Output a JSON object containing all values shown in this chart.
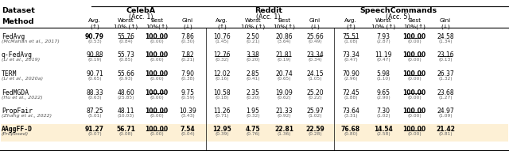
{
  "datasets": [
    "CelebA",
    "Reddit",
    "SpeechCommands"
  ],
  "dataset_subtitles": [
    "(Acc. 1)",
    "(Acc. 1)",
    "(Acc. 5)"
  ],
  "methods": [
    {
      "name": "FedAvg",
      "cite": "(McMahan et al., 2017)"
    },
    {
      "name": "q-FedAvg",
      "cite": "(Li et al., 2019)"
    },
    {
      "name": "TERM",
      "cite": "(Li et al., 2020a)"
    },
    {
      "name": "FedMGDA",
      "cite": "(Hu et al., 2022)"
    },
    {
      "name": "PropFair",
      "cite": "(Zhang et al., 2022)"
    },
    {
      "name": "AAggFF-D",
      "cite": "(Proposed)"
    }
  ],
  "data": {
    "CelebA": {
      "FedAvg": [
        [
          "90.79",
          "55.76",
          "100.00",
          "7.86"
        ],
        [
          "(0.53)",
          "(0.84)",
          "(0.00)",
          "(0.30)"
        ]
      ],
      "q-FedAvg": [
        [
          "90.88",
          "55.73",
          "100.00",
          "7.82"
        ],
        [
          "(0.19)",
          "(0.85)",
          "(0.00)",
          "(0.21)"
        ]
      ],
      "TERM": [
        [
          "90.71",
          "55.66",
          "100.00",
          "7.90"
        ],
        [
          "(0.65)",
          "(0.93)",
          "(0.00)",
          "(0.38)"
        ]
      ],
      "FedMGDA": [
        [
          "88.33",
          "48.60",
          "100.00",
          "9.75"
        ],
        [
          "(0.63)",
          "(25.85)",
          "(0.00)",
          "(0.59)"
        ]
      ],
      "PropFair": [
        [
          "87.25",
          "48.11",
          "100.00",
          "10.39"
        ],
        [
          "(5.01)",
          "(10.03)",
          "(0.00)",
          "(3.43)"
        ]
      ],
      "AAggFF-D": [
        [
          "91.27",
          "56.71",
          "100.00",
          "7.54"
        ],
        [
          "(0.07)",
          "(0.08)",
          "(0.00)",
          "(0.04)"
        ]
      ]
    },
    "Reddit": {
      "FedAvg": [
        [
          "10.76",
          "2.50",
          "20.86",
          "25.66"
        ],
        [
          "(1.45)",
          "(0.21)",
          "(3.64)",
          "(0.49)"
        ]
      ],
      "q-FedAvg": [
        [
          "12.76",
          "3.38",
          "21.81",
          "23.34"
        ],
        [
          "(0.32)",
          "(0.20)",
          "(0.19)",
          "(0.34)"
        ]
      ],
      "TERM": [
        [
          "12.02",
          "2.85",
          "20.74",
          "24.15"
        ],
        [
          "(0.16)",
          "(0.41)",
          "(0.65)",
          "(1.05)"
        ]
      ],
      "FedMGDA": [
        [
          "10.58",
          "2.35",
          "19.09",
          "25.20"
        ],
        [
          "(0.18)",
          "(0.20)",
          "(0.62)",
          "(0.22)"
        ]
      ],
      "PropFair": [
        [
          "11.26",
          "1.95",
          "21.33",
          "25.97"
        ],
        [
          "(0.71)",
          "(0.32)",
          "(0.92)",
          "(1.02)"
        ]
      ],
      "AAggFF-D": [
        [
          "12.95",
          "4.75",
          "22.81",
          "22.59"
        ],
        [
          "(0.39)",
          "(0.76)",
          "(1.36)",
          "(0.28)"
        ]
      ]
    },
    "SpeechCommands": {
      "FedAvg": [
        [
          "75.51",
          "7.93",
          "100.00",
          "24.58"
        ],
        [
          "(1.08)",
          "(2.87)",
          "(0.00)",
          "(1.34)"
        ]
      ],
      "q-FedAvg": [
        [
          "73.34",
          "11.19",
          "100.00",
          "23.16"
        ],
        [
          "(0.47)",
          "(0.47)",
          "(0.00)",
          "(0.13)"
        ]
      ],
      "TERM": [
        [
          "70.90",
          "5.98",
          "100.00",
          "26.37"
        ],
        [
          "(2.96)",
          "(1.10)",
          "(0.00)",
          "(1.32)"
        ]
      ],
      "FedMGDA": [
        [
          "72.45",
          "9.65",
          "100.00",
          "23.68"
        ],
        [
          "(1.88)",
          "(2.90)",
          "(0.00)",
          "(1.27)"
        ]
      ],
      "PropFair": [
        [
          "73.64",
          "7.30",
          "100.00",
          "24.97"
        ],
        [
          "(3.31)",
          "(1.02)",
          "(0.00)",
          "(1.09)"
        ]
      ],
      "AAggFF-D": [
        [
          "76.68",
          "14.54",
          "100.00",
          "21.42"
        ],
        [
          "(0.80)",
          "(2.58)",
          "(0.00)",
          "(0.81)"
        ]
      ]
    }
  },
  "bold": {
    "CelebA": {
      "FedAvg": [
        true,
        false,
        true,
        false
      ],
      "q-FedAvg": [
        false,
        false,
        true,
        false
      ],
      "TERM": [
        false,
        false,
        true,
        false
      ],
      "FedMGDA": [
        false,
        false,
        true,
        false
      ],
      "PropFair": [
        false,
        false,
        true,
        false
      ],
      "AAggFF-D": [
        true,
        true,
        true,
        true
      ]
    },
    "Reddit": {
      "FedAvg": [
        false,
        false,
        false,
        false
      ],
      "q-FedAvg": [
        false,
        false,
        false,
        false
      ],
      "TERM": [
        false,
        false,
        false,
        false
      ],
      "FedMGDA": [
        false,
        false,
        false,
        false
      ],
      "PropFair": [
        false,
        false,
        false,
        false
      ],
      "AAggFF-D": [
        true,
        true,
        true,
        true
      ]
    },
    "SpeechCommands": {
      "FedAvg": [
        false,
        false,
        true,
        false
      ],
      "q-FedAvg": [
        false,
        false,
        true,
        false
      ],
      "TERM": [
        false,
        false,
        true,
        false
      ],
      "FedMGDA": [
        false,
        false,
        true,
        false
      ],
      "PropFair": [
        false,
        false,
        true,
        false
      ],
      "AAggFF-D": [
        true,
        true,
        true,
        true
      ]
    }
  },
  "underline": {
    "CelebA": {
      "FedAvg": [
        false,
        true,
        true,
        false
      ],
      "q-FedAvg": [
        true,
        false,
        true,
        true
      ],
      "TERM": [
        false,
        false,
        true,
        false
      ],
      "FedMGDA": [
        false,
        false,
        true,
        false
      ],
      "PropFair": [
        false,
        false,
        true,
        false
      ],
      "AAggFF-D": [
        false,
        false,
        true,
        false
      ]
    },
    "Reddit": {
      "FedAvg": [
        false,
        false,
        false,
        false
      ],
      "q-FedAvg": [
        true,
        true,
        true,
        true
      ],
      "TERM": [
        false,
        false,
        false,
        false
      ],
      "FedMGDA": [
        false,
        false,
        false,
        false
      ],
      "PropFair": [
        false,
        false,
        false,
        false
      ],
      "AAggFF-D": [
        false,
        false,
        false,
        false
      ]
    },
    "SpeechCommands": {
      "FedAvg": [
        true,
        false,
        true,
        false
      ],
      "q-FedAvg": [
        false,
        false,
        true,
        true
      ],
      "TERM": [
        false,
        false,
        true,
        false
      ],
      "FedMGDA": [
        false,
        false,
        true,
        false
      ],
      "PropFair": [
        false,
        false,
        true,
        false
      ],
      "AAggFF-D": [
        false,
        false,
        true,
        false
      ]
    }
  },
  "last_row_bg": "#fdf0d5"
}
